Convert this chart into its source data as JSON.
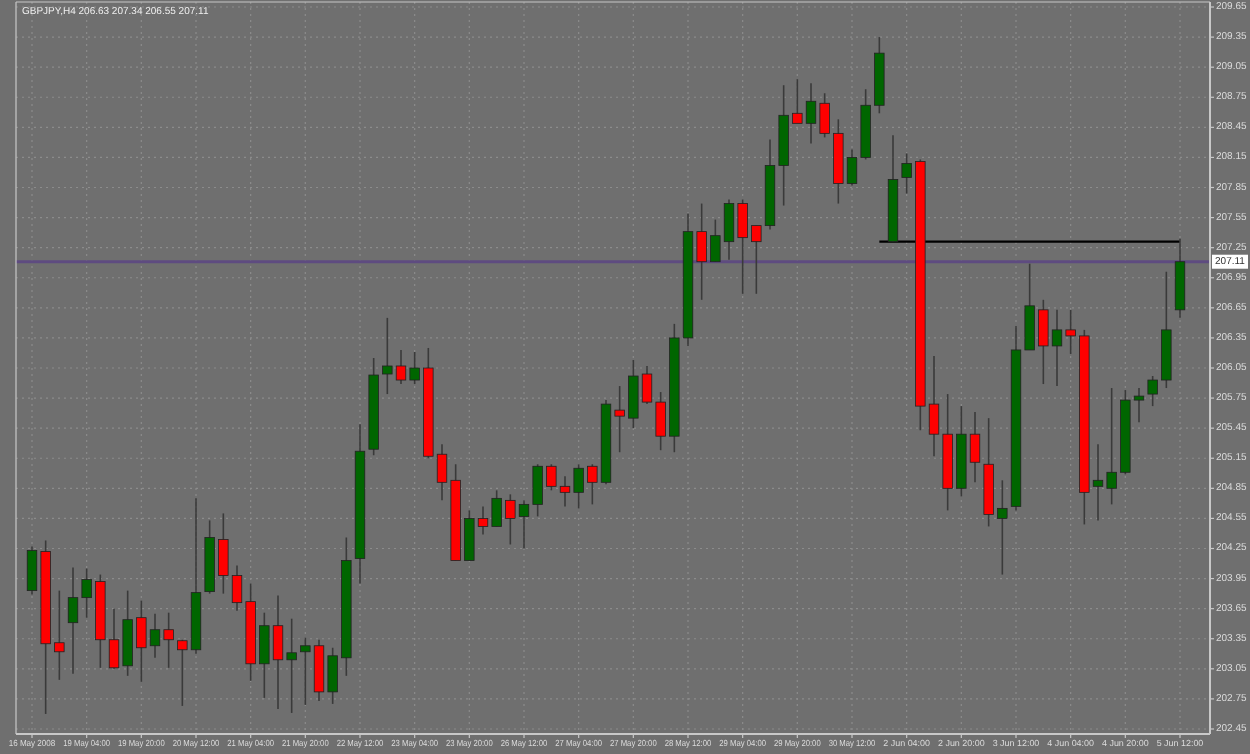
{
  "chart_data": {
    "type": "candlestick",
    "title": "GBPJPY,H4 206.63 207.34 206.55 207.11",
    "categories": [
      "16 May 2008",
      null,
      null,
      null,
      "19 May 04:00",
      null,
      null,
      null,
      "19 May 20:00",
      null,
      null,
      null,
      "20 May 12:00",
      null,
      null,
      null,
      "21 May 04:00",
      null,
      null,
      null,
      "21 May 20:00",
      null,
      null,
      null,
      "22 May 12:00",
      null,
      null,
      null,
      "23 May 04:00",
      null,
      null,
      null,
      "23 May 20:00",
      null,
      null,
      null,
      "26 May 12:00",
      null,
      null,
      null,
      "27 May 04:00",
      null,
      null,
      null,
      "27 May 20:00",
      null,
      null,
      null,
      "28 May 12:00",
      null,
      null,
      null,
      "29 May 04:00",
      null,
      null,
      null,
      "29 May 20:00",
      null,
      null,
      null,
      "30 May 12:00",
      null,
      null,
      null,
      "2 Jun 04:00",
      null,
      null,
      null,
      "2 Jun 20:00",
      null,
      null,
      null,
      "3 Jun 12:00",
      null,
      null,
      null,
      "4 Jun 04:00",
      null,
      null,
      null,
      "4 Jun 20:00",
      null,
      null,
      null,
      "5 Jun 12:00"
    ],
    "ohlc": [
      [
        203.83,
        204.27,
        203.79,
        204.23
      ],
      [
        204.22,
        204.33,
        202.6,
        203.3
      ],
      [
        203.31,
        203.83,
        202.94,
        203.22
      ],
      [
        203.51,
        204.06,
        203.0,
        203.76
      ],
      [
        203.76,
        204.05,
        203.56,
        203.94
      ],
      [
        203.92,
        203.99,
        203.06,
        203.34
      ],
      [
        203.34,
        203.65,
        203.05,
        203.06
      ],
      [
        203.08,
        203.83,
        202.98,
        203.54
      ],
      [
        203.56,
        203.73,
        202.92,
        203.26
      ],
      [
        203.28,
        203.6,
        203.16,
        203.44
      ],
      [
        203.44,
        203.61,
        203.06,
        203.34
      ],
      [
        203.33,
        203.34,
        202.68,
        203.24
      ],
      [
        203.24,
        204.75,
        203.2,
        203.81
      ],
      [
        203.82,
        204.53,
        203.8,
        204.36
      ],
      [
        204.34,
        204.6,
        203.8,
        203.98
      ],
      [
        203.98,
        204.08,
        203.63,
        203.71
      ],
      [
        203.72,
        203.9,
        202.93,
        203.1
      ],
      [
        203.1,
        203.61,
        202.76,
        203.48
      ],
      [
        203.48,
        203.78,
        202.65,
        203.14
      ],
      [
        203.14,
        203.55,
        202.61,
        203.21
      ],
      [
        203.22,
        203.36,
        202.69,
        203.28
      ],
      [
        203.28,
        203.34,
        202.73,
        202.82
      ],
      [
        202.82,
        203.26,
        202.7,
        203.18
      ],
      [
        203.16,
        204.36,
        202.98,
        204.13
      ],
      [
        204.15,
        205.49,
        203.9,
        205.22
      ],
      [
        205.24,
        206.15,
        205.18,
        205.98
      ],
      [
        205.99,
        206.55,
        205.79,
        206.07
      ],
      [
        206.07,
        206.23,
        205.89,
        205.93
      ],
      [
        205.93,
        206.21,
        205.89,
        206.05
      ],
      [
        206.05,
        206.25,
        205.15,
        205.17
      ],
      [
        205.19,
        205.29,
        204.73,
        204.91
      ],
      [
        204.93,
        205.09,
        204.13,
        204.13
      ],
      [
        204.13,
        204.63,
        204.13,
        204.55
      ],
      [
        204.55,
        204.67,
        204.39,
        204.47
      ],
      [
        204.47,
        204.83,
        204.47,
        204.75
      ],
      [
        204.73,
        204.79,
        204.29,
        204.55
      ],
      [
        204.57,
        204.73,
        204.25,
        204.69
      ],
      [
        204.69,
        205.09,
        204.57,
        205.07
      ],
      [
        205.07,
        205.09,
        204.83,
        204.87
      ],
      [
        204.87,
        204.97,
        204.67,
        204.81
      ],
      [
        204.81,
        205.09,
        204.65,
        205.05
      ],
      [
        205.07,
        205.09,
        204.69,
        204.91
      ],
      [
        204.91,
        205.73,
        204.89,
        205.69
      ],
      [
        205.63,
        205.87,
        205.21,
        205.57
      ],
      [
        205.55,
        206.13,
        205.45,
        205.97
      ],
      [
        205.99,
        206.07,
        205.69,
        205.71
      ],
      [
        205.71,
        205.81,
        205.23,
        205.37
      ],
      [
        205.37,
        206.49,
        205.21,
        206.35
      ],
      [
        206.35,
        207.59,
        206.27,
        207.41
      ],
      [
        207.41,
        207.69,
        206.73,
        207.11
      ],
      [
        207.11,
        207.53,
        207.11,
        207.37
      ],
      [
        207.31,
        207.73,
        207.13,
        207.69
      ],
      [
        207.69,
        207.73,
        206.79,
        207.35
      ],
      [
        207.47,
        207.47,
        206.79,
        207.31
      ],
      [
        207.47,
        208.33,
        207.43,
        208.07
      ],
      [
        208.07,
        208.87,
        207.67,
        208.57
      ],
      [
        208.59,
        208.93,
        208.49,
        208.49
      ],
      [
        208.49,
        208.89,
        208.29,
        208.71
      ],
      [
        208.69,
        208.79,
        208.35,
        208.39
      ],
      [
        208.39,
        208.53,
        207.69,
        207.89
      ],
      [
        207.89,
        208.23,
        207.87,
        208.15
      ],
      [
        208.15,
        208.83,
        208.13,
        208.67
      ],
      [
        208.67,
        209.35,
        208.59,
        209.19
      ],
      [
        207.31,
        208.37,
        207.31,
        207.93
      ],
      [
        207.95,
        208.19,
        207.79,
        208.09
      ],
      [
        208.11,
        208.13,
        205.43,
        205.67
      ],
      [
        205.69,
        206.17,
        205.17,
        205.39
      ],
      [
        205.39,
        205.79,
        204.63,
        204.85
      ],
      [
        204.85,
        205.67,
        204.77,
        205.39
      ],
      [
        205.39,
        205.61,
        204.91,
        205.11
      ],
      [
        205.09,
        205.55,
        204.47,
        204.59
      ],
      [
        204.55,
        204.93,
        203.99,
        204.65
      ],
      [
        204.67,
        206.47,
        204.63,
        206.23
      ],
      [
        206.23,
        207.09,
        206.23,
        206.67
      ],
      [
        206.63,
        206.73,
        205.89,
        206.27
      ],
      [
        206.27,
        206.63,
        205.87,
        206.43
      ],
      [
        206.43,
        206.63,
        206.19,
        206.37
      ],
      [
        206.37,
        206.43,
        204.49,
        204.81
      ],
      [
        204.87,
        205.29,
        204.53,
        204.93
      ],
      [
        204.85,
        205.85,
        204.69,
        205.01
      ],
      [
        205.01,
        205.83,
        204.99,
        205.73
      ],
      [
        205.73,
        205.85,
        205.51,
        205.77
      ],
      [
        205.79,
        205.97,
        205.67,
        205.93
      ],
      [
        205.93,
        207.01,
        205.85,
        206.43
      ],
      [
        206.63,
        207.34,
        206.55,
        207.11
      ]
    ],
    "colors": [
      "#006600",
      "#ff0000",
      "#ff0000",
      "#006600",
      "#006600",
      "#ff0000",
      "#ff0000",
      "#006600",
      "#ff0000",
      "#006600",
      "#ff0000",
      "#ff0000",
      "#006600",
      "#006600",
      "#ff0000",
      "#ff0000",
      "#ff0000",
      "#006600",
      "#ff0000",
      "#006600",
      "#006600",
      "#ff0000",
      "#006600",
      "#006600",
      "#006600",
      "#006600",
      "#006600",
      "#ff0000",
      "#006600",
      "#ff0000",
      "#ff0000",
      "#ff0000",
      "#006600",
      "#ff0000",
      "#006600",
      "#ff0000",
      "#006600",
      "#006600",
      "#ff0000",
      "#ff0000",
      "#006600",
      "#ff0000",
      "#006600",
      "#ff0000",
      "#006600",
      "#ff0000",
      "#ff0000",
      "#006600",
      "#006600",
      "#ff0000",
      "#006600",
      "#006600",
      "#ff0000",
      "#ff0000",
      "#006600",
      "#006600",
      "#ff0000",
      "#006600",
      "#ff0000",
      "#ff0000",
      "#006600",
      "#006600",
      "#006600",
      "#006600",
      "#006600",
      "#ff0000",
      "#ff0000",
      "#ff0000",
      "#006600",
      "#ff0000",
      "#ff0000",
      "#006600",
      "#006600",
      "#006600",
      "#ff0000",
      "#006600",
      "#ff0000",
      "#ff0000",
      "#006600",
      "#006600",
      "#006600",
      "#006600",
      "#006600",
      "#006600",
      "#006600"
    ],
    "series": [
      {
        "type": "line",
        "color": "#000000",
        "values": [
          null,
          null,
          null,
          null,
          null,
          null,
          null,
          null,
          null,
          null,
          null,
          null,
          null,
          null,
          null,
          null,
          null,
          null,
          null,
          null,
          null,
          null,
          null,
          null,
          null,
          null,
          null,
          null,
          null,
          null,
          null,
          null,
          null,
          null,
          null,
          null,
          null,
          null,
          null,
          null,
          null,
          null,
          null,
          null,
          null,
          null,
          null,
          null,
          null,
          null,
          null,
          null,
          null,
          null,
          null,
          null,
          null,
          null,
          null,
          null,
          null,
          null,
          207.31,
          207.31,
          207.31,
          207.31,
          207.31,
          207.31,
          207.31,
          207.31,
          207.31,
          207.31,
          207.31,
          207.31,
          207.31,
          207.31,
          207.31,
          207.31,
          207.31,
          207.31,
          207.31,
          207.31,
          207.31,
          207.31,
          207.31
        ]
      }
    ],
    "ylim": [
      202.4,
      209.7
    ],
    "yticks": [
      202.45,
      202.75,
      203.05,
      203.35,
      203.65,
      203.95,
      204.25,
      204.55,
      204.85,
      205.15,
      205.45,
      205.75,
      206.05,
      206.35,
      206.65,
      206.95,
      207.25,
      207.55,
      207.85,
      208.15,
      208.45,
      208.75,
      209.05,
      209.35,
      209.65
    ],
    "ref_lines": [
      {
        "axis": "y",
        "value": 207.11,
        "label": "207.11",
        "color": "#5e4b80"
      }
    ],
    "grid": true
  }
}
